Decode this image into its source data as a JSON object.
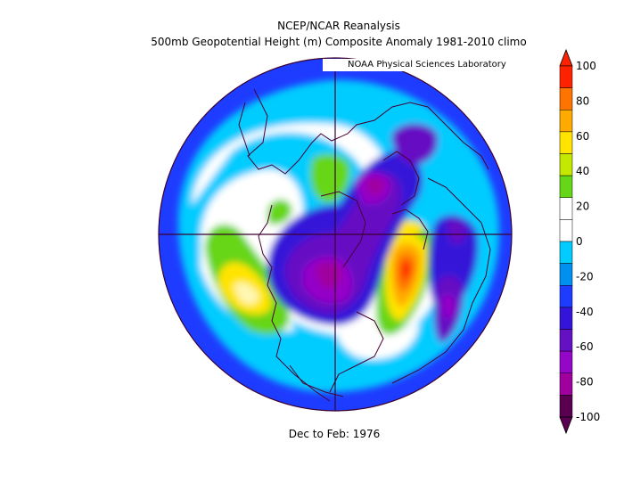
{
  "title_line1": "NCEP/NCAR Reanalysis",
  "title_line2": "500mb Geopotential Height (m) Composite Anomaly 1981-2010 climo",
  "credit": "NOAA Physical Sciences Laboratory",
  "footer": "Dec to Feb: 1976",
  "colorbar": {
    "ticks": [
      "100",
      "80",
      "60",
      "40",
      "20",
      "0",
      "-20",
      "-40",
      "-60",
      "-80",
      "-100"
    ],
    "colors": [
      "#ff2200",
      "#ff7300",
      "#ffaa00",
      "#ffe400",
      "#c5e800",
      "#66d619",
      "#ffffff",
      "#ffffff",
      "#00ccff",
      "#0090f0",
      "#1e3cff",
      "#3414d8",
      "#6610c4",
      "#9406c8",
      "#a0009e",
      "#5a0050"
    ]
  },
  "colors": {
    "land_outline": "#4a0034",
    "grid": "#3a0030",
    "background": "#ffffff"
  }
}
